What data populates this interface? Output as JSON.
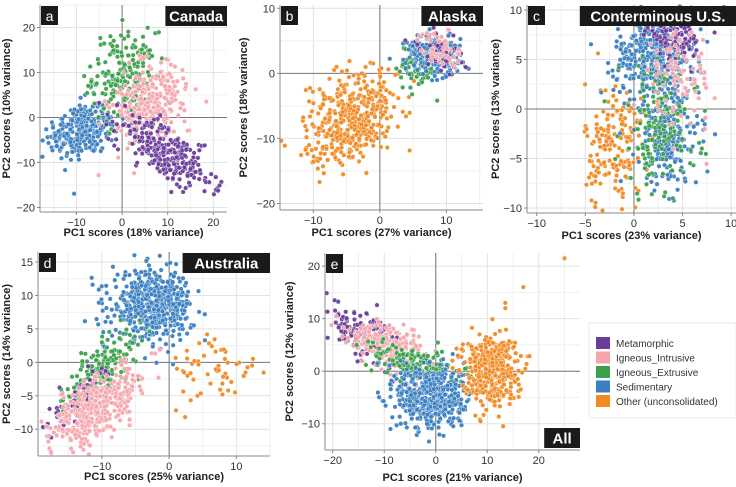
{
  "legend": {
    "title": "",
    "entries": [
      {
        "label": "Metamorphic",
        "color": "#6a3d9a"
      },
      {
        "label": "Igneous_Intrusive",
        "color": "#f4a6ad"
      },
      {
        "label": "Igneous_Extrusive",
        "color": "#3aa04a"
      },
      {
        "label": "Sedimentary",
        "color": "#3a7fc1"
      },
      {
        "label": "Other (unconsolidated)",
        "color": "#f08a24"
      }
    ]
  },
  "chart_data": [
    {
      "type": "scatter",
      "panel": "a",
      "title": "Canada",
      "xlabel": "PC1 scores (18% variance)",
      "ylabel": "PC2 scores (10% variance)",
      "xlim": [
        -18,
        23
      ],
      "ylim": [
        -21,
        25
      ],
      "xticks": [
        -10,
        0,
        10,
        20
      ],
      "yticks": [
        -20,
        -10,
        0,
        10,
        20
      ],
      "grid": true,
      "series": [
        {
          "name": "Sedimentary",
          "clusters": [
            {
              "cx": -9,
              "cy": -3,
              "sx": 4,
              "sy": 3,
              "rot": 20,
              "n": 260
            }
          ]
        },
        {
          "name": "Igneous_Extrusive",
          "clusters": [
            {
              "cx": 0.5,
              "cy": 9,
              "sx": 3.5,
              "sy": 5,
              "rot": 0,
              "n": 200
            }
          ]
        },
        {
          "name": "Igneous_Intrusive",
          "clusters": [
            {
              "cx": 6,
              "cy": 3,
              "sx": 3.5,
              "sy": 5,
              "rot": -30,
              "n": 260
            }
          ]
        },
        {
          "name": "Metamorphic",
          "clusters": [
            {
              "cx": 10,
              "cy": -8,
              "sx": 6,
              "sy": 2.5,
              "rot": -35,
              "n": 260
            }
          ]
        }
      ]
    },
    {
      "type": "scatter",
      "panel": "b",
      "title": "Alaska",
      "xlabel": "PC1 scores (27% variance)",
      "ylabel": "PC2 scores (18% variance)",
      "xlim": [
        -15,
        15.5
      ],
      "ylim": [
        -21,
        10.5
      ],
      "xticks": [
        -10,
        0,
        10
      ],
      "yticks": [
        -20,
        -10,
        0,
        10
      ],
      "grid": true,
      "series": [
        {
          "name": "Other (unconsolidated)",
          "clusters": [
            {
              "cx": -4,
              "cy": -7,
              "sx": 3,
              "sy": 4,
              "rot": -40,
              "n": 420
            }
          ]
        },
        {
          "name": "Igneous_Extrusive",
          "clusters": [
            {
              "cx": 5.5,
              "cy": 1,
              "sx": 1.5,
              "sy": 1.8,
              "rot": 0,
              "n": 70
            }
          ]
        },
        {
          "name": "Sedimentary",
          "clusters": [
            {
              "cx": 8,
              "cy": 2.8,
              "sx": 2,
              "sy": 1.5,
              "rot": -20,
              "n": 220
            }
          ]
        },
        {
          "name": "Metamorphic",
          "clusters": [
            {
              "cx": 9,
              "cy": 3.5,
              "sx": 1.8,
              "sy": 1.2,
              "rot": -20,
              "n": 50
            }
          ]
        },
        {
          "name": "Igneous_Intrusive",
          "clusters": [
            {
              "cx": 9,
              "cy": 3.5,
              "sx": 1.8,
              "sy": 1.2,
              "rot": -20,
              "n": 50
            }
          ]
        }
      ]
    },
    {
      "type": "scatter",
      "panel": "c",
      "title": "Conterminous U.S.",
      "xlabel": "PC1 scores (23% variance)",
      "ylabel": "PC2 scores (13% variance)",
      "xlim": [
        -11,
        10.5
      ],
      "ylim": [
        -10.5,
        10.5
      ],
      "xticks": [
        -10,
        -5,
        0,
        5,
        10
      ],
      "yticks": [
        -10,
        -5,
        0,
        5,
        10
      ],
      "grid": true,
      "series": [
        {
          "name": "Other (unconsolidated)",
          "clusters": [
            {
              "cx": -2,
              "cy": -4,
              "sx": 1.5,
              "sy": 3.5,
              "rot": 0,
              "n": 170
            }
          ]
        },
        {
          "name": "Sedimentary",
          "clusters": [
            {
              "cx": 2,
              "cy": 5.5,
              "sx": 2,
              "sy": 2.2,
              "rot": 0,
              "n": 380
            },
            {
              "cx": 3.5,
              "cy": -3,
              "sx": 1.6,
              "sy": 2.5,
              "rot": 0,
              "n": 220
            }
          ]
        },
        {
          "name": "Igneous_Extrusive",
          "clusters": [
            {
              "cx": 2.5,
              "cy": -2,
              "sx": 2,
              "sy": 3.5,
              "rot": 0,
              "n": 150
            }
          ]
        },
        {
          "name": "Metamorphic",
          "clusters": [
            {
              "cx": 4.5,
              "cy": 7.5,
              "sx": 1.6,
              "sy": 1.2,
              "rot": 0,
              "n": 120
            }
          ]
        },
        {
          "name": "Igneous_Intrusive",
          "clusters": [
            {
              "cx": 4.5,
              "cy": 3,
              "sx": 1.8,
              "sy": 2.5,
              "rot": 0,
              "n": 90
            }
          ]
        }
      ]
    },
    {
      "type": "scatter",
      "panel": "d",
      "title": "Australia",
      "xlabel": "PC1 scores (25% variance)",
      "ylabel": "PC2 scores (14% variance)",
      "xlim": [
        -19.5,
        15
      ],
      "ylim": [
        -14,
        16.5
      ],
      "xticks": [
        -10,
        0,
        10
      ],
      "yticks": [
        -10,
        -5,
        0,
        5,
        10,
        15
      ],
      "grid": true,
      "series": [
        {
          "name": "Sedimentary",
          "clusters": [
            {
              "cx": -2.5,
              "cy": 8.5,
              "sx": 3,
              "sy": 2.5,
              "rot": 0,
              "n": 520
            }
          ]
        },
        {
          "name": "Igneous_Extrusive",
          "clusters": [
            {
              "cx": -10,
              "cy": -1,
              "sx": 3.5,
              "sy": 1.6,
              "rot": 50,
              "n": 180
            }
          ]
        },
        {
          "name": "Metamorphic",
          "clusters": [
            {
              "cx": -13.5,
              "cy": -5.5,
              "sx": 3,
              "sy": 1.2,
              "rot": 50,
              "n": 60
            }
          ]
        },
        {
          "name": "Igneous_Intrusive",
          "clusters": [
            {
              "cx": -11,
              "cy": -7,
              "sx": 4,
              "sy": 1.8,
              "rot": 40,
              "n": 380
            }
          ]
        },
        {
          "name": "Other (unconsolidated)",
          "clusters": [
            {
              "cx": 7,
              "cy": -1.5,
              "sx": 3.5,
              "sy": 3,
              "rot": 0,
              "n": 55
            }
          ]
        }
      ]
    },
    {
      "type": "scatter",
      "panel": "e",
      "title": "All",
      "xlabel": "PC1 scores (21% variance)",
      "ylabel": "PC2 scores (12% variance)",
      "xlim": [
        -21.5,
        28
      ],
      "ylim": [
        -15,
        22.5
      ],
      "xticks": [
        -20,
        -10,
        0,
        10,
        20
      ],
      "yticks": [
        -10,
        0,
        10,
        20
      ],
      "grid": true,
      "series": [
        {
          "name": "Metamorphic",
          "clusters": [
            {
              "cx": -14,
              "cy": 7,
              "sx": 4,
              "sy": 2,
              "rot": -30,
              "n": 150
            }
          ]
        },
        {
          "name": "Igneous_Intrusive",
          "clusters": [
            {
              "cx": -9,
              "cy": 5,
              "sx": 4,
              "sy": 1.8,
              "rot": -25,
              "n": 230
            }
          ]
        },
        {
          "name": "Igneous_Extrusive",
          "clusters": [
            {
              "cx": -4,
              "cy": 1.5,
              "sx": 4.5,
              "sy": 1.5,
              "rot": -15,
              "n": 160
            }
          ]
        },
        {
          "name": "Sedimentary",
          "clusters": [
            {
              "cx": -1,
              "cy": -5,
              "sx": 3.2,
              "sy": 3,
              "rot": 0,
              "n": 520
            }
          ]
        },
        {
          "name": "Other (unconsolidated)",
          "clusters": [
            {
              "cx": 10.5,
              "cy": 0.5,
              "sx": 2.6,
              "sy": 3.2,
              "rot": 0,
              "n": 420
            }
          ],
          "points": [
            [
              13.5,
              12
            ],
            [
              13.5,
              13
            ],
            [
              17,
              16
            ],
            [
              25,
              21.5
            ]
          ]
        }
      ]
    }
  ]
}
